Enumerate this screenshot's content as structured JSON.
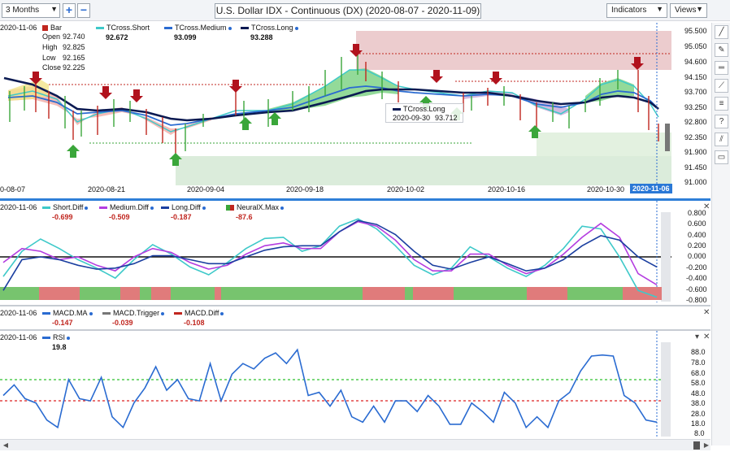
{
  "toolbar": {
    "period": "3 Months",
    "add_label": "+",
    "remove_label": "−",
    "title": "U.S. Dollar IDX - Continuous (DX) (2020-08-07 - 2020-11-09)",
    "indicators_label": "Indicators",
    "views_label": "Views"
  },
  "price_pane": {
    "legend_date": "2020-11-06",
    "bar_label": "Bar",
    "ohlc": [
      {
        "label": "Open",
        "value": "92.740"
      },
      {
        "label": "High",
        "value": "92.825"
      },
      {
        "label": "Low",
        "value": "92.165"
      },
      {
        "label": "Close",
        "value": "92.225"
      }
    ],
    "tcross": [
      {
        "name": "TCross.Short",
        "value": "92.672",
        "color": "#3ec9c9"
      },
      {
        "name": "TCross.Medium",
        "value": "93.099",
        "color": "#2a6bd1"
      },
      {
        "name": "TCross.Long",
        "value": "93.288",
        "color": "#0b1a52"
      }
    ],
    "tooltip": {
      "title": "TCross.Long",
      "date": "2020-09-30",
      "value": "93.712"
    },
    "y_ticks": [
      "95.500",
      "95.050",
      "94.600",
      "94.150",
      "93.700",
      "93.250",
      "92.800",
      "92.350",
      "91.900",
      "91.450",
      "91.000"
    ],
    "x_ticks": [
      "0-08-07",
      "2020-08-21",
      "2020-09-04",
      "2020-09-18",
      "2020-10-02",
      "2020-10-16",
      "2020-10-30"
    ],
    "current_date": "2020-11-06"
  },
  "diff_pane": {
    "legend_date": "2020-11-06",
    "items": [
      {
        "name": "Short.Diff",
        "value": "-0.699",
        "color": "#3ec9c9"
      },
      {
        "name": "Medium.Diff",
        "value": "-0.509",
        "color": "#b43de0"
      },
      {
        "name": "Long.Diff",
        "value": "-0.187",
        "color": "#1b3fa0"
      },
      {
        "name": "NeuralX.Max",
        "value": "-87.6",
        "color": "#c0261f"
      }
    ],
    "y_ticks": [
      "0.800",
      "0.600",
      "0.400",
      "0.200",
      "0.000",
      "-0.200",
      "-0.400",
      "-0.600",
      "-0.800"
    ]
  },
  "macd_pane": {
    "legend_date": "2020-11-06",
    "items": [
      {
        "name": "MACD.MA",
        "value": "-0.147",
        "color": "#2a6bd1"
      },
      {
        "name": "MACD.Trigger",
        "value": "-0.039",
        "color": "#777777"
      },
      {
        "name": "MACD.Diff",
        "value": "-0.108",
        "color": "#c0261f"
      }
    ]
  },
  "rsi_pane": {
    "legend_date": "2020-11-06",
    "name": "RSI",
    "value": "19.8",
    "y_ticks": [
      "88.0",
      "78.0",
      "68.0",
      "58.0",
      "48.0",
      "38.0",
      "28.0",
      "18.0",
      "8.0"
    ]
  },
  "chart_data": [
    {
      "type": "line",
      "series": [
        {
          "name": "Short.Diff",
          "values": [
            -0.35,
            0.1,
            0.32,
            0.15,
            -0.05,
            -0.2,
            -0.38,
            -0.05,
            0.22,
            0.05,
            -0.18,
            -0.32,
            -0.1,
            0.15,
            0.33,
            0.35,
            0.1,
            0.2,
            0.55,
            0.68,
            0.5,
            0.2,
            -0.15,
            -0.32,
            -0.2,
            0.18,
            0.0,
            -0.2,
            -0.35,
            -0.15,
            0.15,
            0.55,
            0.5,
            0.0,
            -0.6,
            -0.72
          ]
        },
        {
          "name": "Medium.Diff",
          "values": [
            -0.1,
            0.15,
            0.1,
            -0.05,
            0.0,
            -0.15,
            -0.25,
            0.0,
            0.15,
            0.08,
            -0.1,
            -0.22,
            -0.15,
            0.05,
            0.2,
            0.25,
            0.15,
            0.15,
            0.45,
            0.63,
            0.55,
            0.3,
            -0.05,
            -0.25,
            -0.25,
            0.05,
            0.05,
            -0.15,
            -0.3,
            -0.2,
            0.05,
            0.35,
            0.6,
            0.35,
            -0.3,
            -0.5
          ]
        },
        {
          "name": "Long.Diff",
          "values": [
            -0.6,
            -0.05,
            0.0,
            -0.05,
            -0.15,
            -0.22,
            -0.2,
            -0.12,
            0.02,
            0.02,
            -0.05,
            -0.12,
            -0.12,
            0.0,
            0.12,
            0.18,
            0.2,
            0.2,
            0.45,
            0.65,
            0.58,
            0.4,
            0.1,
            -0.15,
            -0.22,
            -0.1,
            0.0,
            -0.12,
            -0.25,
            -0.2,
            -0.05,
            0.2,
            0.38,
            0.3,
            0.0,
            -0.18
          ]
        }
      ],
      "ylim": [
        -0.8,
        0.8
      ]
    },
    {
      "type": "line",
      "series": [
        {
          "name": "RSI",
          "values": [
            45,
            55,
            42,
            38,
            22,
            15,
            60,
            42,
            40,
            62,
            25,
            15,
            38,
            52,
            72,
            50,
            60,
            42,
            40,
            75,
            40,
            65,
            75,
            70,
            80,
            85,
            75,
            88,
            45,
            48,
            35,
            50,
            25,
            20,
            35,
            20,
            40,
            40,
            30,
            45,
            35,
            18,
            18,
            38,
            30,
            20,
            48,
            38,
            15,
            25,
            15,
            40,
            48,
            68,
            82,
            83,
            82,
            45,
            38,
            22,
            20
          ]
        }
      ],
      "ylim": [
        8,
        95
      ]
    }
  ]
}
